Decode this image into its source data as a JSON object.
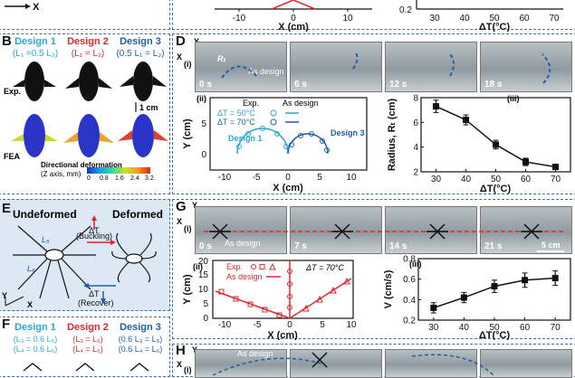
{
  "colors": {
    "design1": "#29a8d8",
    "design2": "#e0262f",
    "design3": "#1f5fa8",
    "panel": "#3a6fb0"
  },
  "panel_labels": {
    "B": "B",
    "D": "D",
    "E": "E",
    "F": "F",
    "G": "G",
    "H": "H"
  },
  "top_strip": {
    "left_ticks": [
      "-10",
      "0",
      "10"
    ],
    "left_xlabel": "X (cm)",
    "right_ticks": [
      "30",
      "40",
      "50",
      "60",
      "70"
    ],
    "right_xlabel": "ΔT(°C)",
    "right_y_tick": "0.2"
  },
  "panel_B": {
    "designs": [
      {
        "name": "Design 1",
        "rel": "(L₁ =0.5 L₂)"
      },
      {
        "name": "Design 2",
        "rel": "(L₁ = L₂)"
      },
      {
        "name": "Design 3",
        "rel": "(0.5 L₁ = L₂)"
      }
    ],
    "exp_label": "Exp.",
    "fea_label": "FEA",
    "scale": "1 cm",
    "colorbar_title": "Directional deformation",
    "colorbar_sub": "(Z axis, mm)",
    "colorbar_ticks": [
      "0",
      "0.8",
      "1.6",
      "2.4",
      "3.2"
    ]
  },
  "panel_D": {
    "sub_i": "(i)",
    "sub_ii": "(ii)",
    "sub_iii": "(iii)",
    "axis_x": "X",
    "axis_y": "Y",
    "photo_times": [
      "0 s",
      "6 s",
      "12 s",
      "18 s"
    ],
    "r_label": "Rₜ",
    "as_design": "As design",
    "legend": {
      "exp": "Exp.",
      "design": "As design",
      "dt50": "ΔT = 50°C",
      "dt70": "ΔT = 70°C"
    },
    "design1": "Design 1",
    "design3": "Design 3",
    "ii_xlabel": "X (cm)",
    "ii_ylabel": "Y (cm)",
    "ii_xticks": [
      "-10",
      "-5",
      "0",
      "5",
      "10"
    ],
    "ii_yticks": [
      "0",
      "5"
    ],
    "iii_ylabel": "Radius, Rₜ (cm)",
    "iii_xlabel": "ΔT(°C)"
  },
  "panel_E": {
    "undeformed": "Undeformed",
    "deformed": "Deformed",
    "dt_up": "ΔT",
    "buckling": "(Buckling)",
    "dt_down": "ΔT",
    "recover": "(Recover)",
    "L5": "L₅",
    "L6": "L₆",
    "axis_x": "X",
    "axis_y": "Y"
  },
  "panel_F": {
    "designs": [
      {
        "name": "Design 1",
        "rel1": "(L₃ = 0.6 L₅)",
        "rel2": "(L₄ = 0.6 L₆)"
      },
      {
        "name": "Design 2",
        "rel1": "(L₃ = L₅)",
        "rel2": "(L₄ = L₆)"
      },
      {
        "name": "Design 3",
        "rel1": "(0.6 L₃ = L₅)",
        "rel2": "(0.6 L₄ = L₆)"
      }
    ]
  },
  "panel_G": {
    "sub_i": "(i)",
    "sub_ii": "(ii)",
    "sub_iii": "(iii)",
    "axis_x": "X",
    "axis_y": "Y",
    "photo_times": [
      "0 s",
      "7 s",
      "14 s",
      "21 s"
    ],
    "as_design": "As design",
    "scale": "5 cm",
    "legend": {
      "exp": "Exp.",
      "design": "As design",
      "dt": "ΔT = 70°C"
    },
    "ii_xlabel": "X (cm)",
    "ii_ylabel": "Y (cm)",
    "ii_xticks": [
      "-10",
      "-5",
      "0",
      "5",
      "10"
    ],
    "ii_yticks": [
      "0",
      "5",
      "10",
      "15",
      "20"
    ],
    "iii_ylabel": "V (cm/s)",
    "iii_xlabel": "ΔT(°C)",
    "iii_xticks": [
      "30",
      "40",
      "50",
      "60",
      "70"
    ],
    "iii_yticks": [
      "0.2",
      "0.4",
      "0.6",
      "0.8"
    ]
  },
  "panel_H": {
    "sub_i": "(i)",
    "axis_x": "X",
    "axis_y": "Y",
    "as_design": "As design"
  },
  "chart_data": [
    {
      "type": "scatter",
      "title": "Panel D(iii)",
      "xlabel": "ΔT(°C)",
      "ylabel": "Radius, Rₜ (cm)",
      "xlim": [
        25,
        75
      ],
      "ylim": [
        2,
        8
      ],
      "x": [
        30,
        40,
        50,
        60,
        70
      ],
      "values": [
        7.3,
        6.2,
        4.2,
        2.8,
        2.4
      ],
      "errors": [
        0.5,
        0.4,
        0.35,
        0.3,
        0.2
      ],
      "xticks": [
        "30",
        "40",
        "50",
        "60",
        "70"
      ],
      "yticks": [
        "2",
        "4",
        "6",
        "8"
      ]
    },
    {
      "type": "scatter",
      "title": "Panel G(iii)",
      "xlabel": "ΔT(°C)",
      "ylabel": "V (cm/s)",
      "xlim": [
        25,
        75
      ],
      "ylim": [
        0.2,
        0.8
      ],
      "x": [
        30,
        40,
        50,
        60,
        70
      ],
      "values": [
        0.32,
        0.42,
        0.53,
        0.59,
        0.61
      ],
      "errors": [
        0.05,
        0.05,
        0.06,
        0.07,
        0.07
      ],
      "xticks": [
        "30",
        "40",
        "50",
        "60",
        "70"
      ],
      "yticks": [
        "0.2",
        "0.4",
        "0.6",
        "0.8"
      ]
    }
  ]
}
